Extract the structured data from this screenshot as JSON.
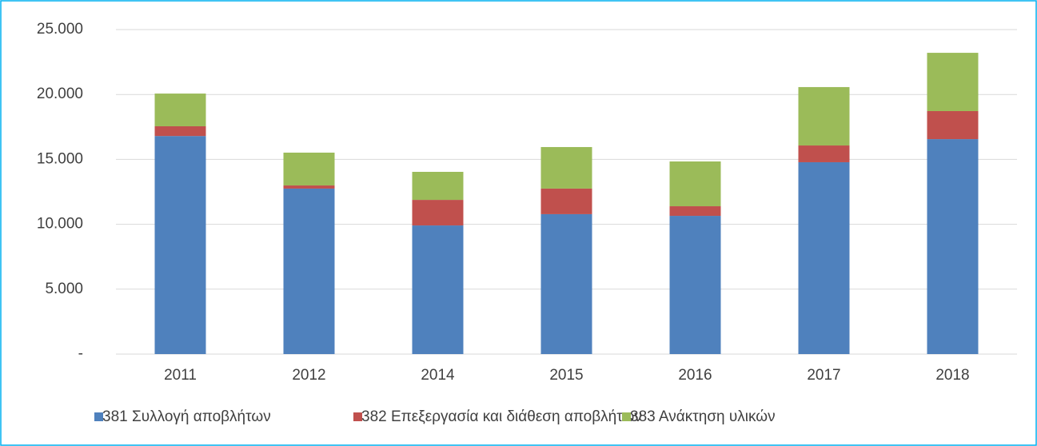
{
  "chart_data": {
    "type": "stacked_bar",
    "categories": [
      "2011",
      "2012",
      "2014",
      "2015",
      "2016",
      "2017",
      "2018"
    ],
    "series": [
      {
        "name": "381 Συλλογή αποβλήτων",
        "color": "#4f81bd",
        "values": [
          16800,
          12750,
          9910,
          10780,
          10650,
          14780,
          16560
        ]
      },
      {
        "name": "382 Επεξεργασία και διάθεση αποβλήτων",
        "color": "#c0504d",
        "values": [
          750,
          240,
          1970,
          1970,
          740,
          1290,
          2160
        ]
      },
      {
        "name": "383 Ανάκτηση υλικών",
        "color": "#9bbb59",
        "values": [
          2520,
          2530,
          2160,
          3200,
          3450,
          4500,
          4490
        ]
      }
    ],
    "ylim": [
      0,
      25000
    ],
    "yticks": [
      {
        "value": 0,
        "label": "-"
      },
      {
        "value": 5000,
        "label": "5.000"
      },
      {
        "value": 10000,
        "label": "10.000"
      },
      {
        "value": 15000,
        "label": "15.000"
      },
      {
        "value": 20000,
        "label": "20.000"
      },
      {
        "value": 25000,
        "label": "25.000"
      }
    ],
    "grid": true,
    "legend": "bottom"
  }
}
